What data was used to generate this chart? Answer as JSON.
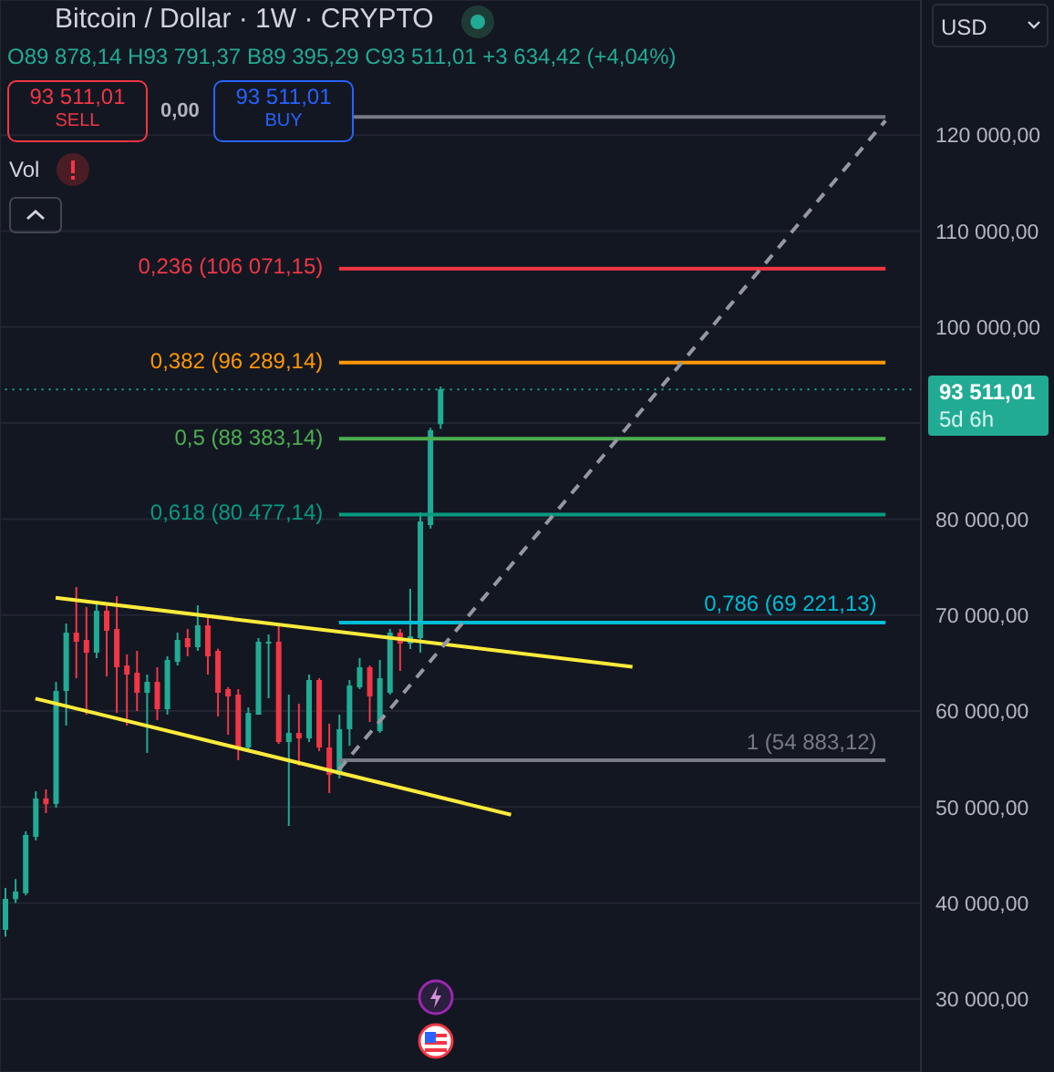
{
  "chart_data": {
    "type": "candlestick",
    "title": "Bitcoin / Dollar · 1W · CRYPTO",
    "subtitle": "O89 878,14 H93 791,37 B89 395,29 C93 511,01 +3 634,42 (+4,04%)",
    "annotations": [
      "93 511,01",
      "SELL",
      "93 511,01",
      "BUY",
      "Vol",
      "USD",
      "93 511,01",
      "5d 6h",
      "0,00"
    ],
    "categories": [
      null,
      null,
      null,
      null,
      null,
      null,
      null,
      null,
      null,
      null,
      null,
      null,
      null,
      null,
      null,
      null,
      null,
      null,
      null,
      null,
      null,
      null,
      null,
      null,
      null,
      null,
      null,
      null,
      null,
      null,
      null,
      null,
      null,
      null,
      null,
      null,
      null,
      null,
      null,
      null,
      null,
      null,
      null,
      null,
      null,
      null,
      null,
      null,
      null,
      null,
      null,
      null,
      null,
      null,
      null,
      null,
      null,
      null,
      null,
      null,
      null,
      null,
      null,
      null,
      null,
      null,
      null,
      null,
      null,
      null,
      null,
      null,
      null,
      null,
      null,
      null,
      null,
      null,
      null,
      null,
      null,
      null,
      null,
      null,
      null,
      null,
      null,
      null,
      null,
      null,
      null
    ],
    "ohlc": [
      [
        37216,
        41580,
        36500,
        40444
      ],
      [
        40400,
        42500,
        40000,
        41200
      ],
      [
        41014,
        47470,
        40800,
        47090
      ],
      [
        46900,
        51650,
        46520,
        50890
      ],
      [
        50900,
        51840,
        49370,
        50300
      ],
      [
        50320,
        63040,
        49940,
        62090
      ],
      [
        62090,
        69120,
        58490,
        68170
      ],
      [
        68170,
        72920,
        63420,
        67220
      ],
      [
        67410,
        70830,
        59620,
        66080
      ],
      [
        66080,
        71210,
        65510,
        70450
      ],
      [
        70450,
        71020,
        63610,
        68360
      ],
      [
        68550,
        71970,
        59810,
        64560
      ],
      [
        64750,
        65890,
        58490,
        63800
      ],
      [
        63990,
        66270,
        60000,
        61900
      ],
      [
        61900,
        63800,
        55640,
        63040
      ],
      [
        63040,
        64560,
        59050,
        60190
      ],
      [
        60190,
        65700,
        59620,
        65320
      ],
      [
        65130,
        68170,
        64750,
        67410
      ],
      [
        67600,
        68550,
        65700,
        66650
      ],
      [
        66650,
        71020,
        66270,
        68930
      ],
      [
        68930,
        69880,
        63800,
        65700
      ],
      [
        66270,
        66500,
        59430,
        61900
      ],
      [
        62280,
        62500,
        57530,
        61520
      ],
      [
        61710,
        62280,
        54880,
        56200
      ],
      [
        56200,
        60380,
        55830,
        59810
      ],
      [
        59620,
        67600,
        59620,
        67220
      ],
      [
        67030,
        67980,
        61330,
        67220
      ],
      [
        67220,
        69120,
        56580,
        56770
      ],
      [
        56770,
        61710,
        48040,
        57720
      ],
      [
        57720,
        60760,
        54310,
        57150
      ],
      [
        57150,
        63800,
        56770,
        63230
      ],
      [
        63230,
        63420,
        55830,
        56200
      ],
      [
        56200,
        58680,
        51460,
        53360
      ],
      [
        53360,
        59620,
        52980,
        58110
      ],
      [
        58110,
        63230,
        56390,
        62660
      ],
      [
        62470,
        65510,
        62280,
        64560
      ],
      [
        64560,
        64750,
        58870,
        61520
      ],
      [
        57910,
        65320,
        57720,
        63420
      ],
      [
        61900,
        68550,
        61710,
        68170
      ],
      [
        68170,
        68550,
        64180,
        67030
      ],
      [
        67030,
        72730,
        66460,
        67790
      ],
      [
        67600,
        80700,
        66080,
        79750
      ],
      [
        79370,
        89500,
        79000,
        89250
      ],
      [
        89878.14,
        93791.37,
        89395.29,
        93511.01
      ],
      null,
      null,
      null,
      null,
      null,
      null,
      null,
      null,
      null,
      null,
      null,
      null,
      null,
      null,
      null,
      null,
      null,
      null,
      null,
      null,
      null,
      null,
      null,
      null,
      null,
      null,
      null,
      null,
      null,
      null,
      null,
      null,
      null,
      null,
      null,
      null,
      null,
      null,
      null,
      null,
      null,
      null,
      null,
      null,
      null,
      null,
      null
    ],
    "colors": [
      "#22ab94",
      "#22ab94",
      "#22ab94",
      "#22ab94",
      "#f23645",
      "#22ab94",
      "#22ab94",
      "#f23645",
      "#f23645",
      "#22ab94",
      "#f23645",
      "#f23645",
      "#f23645",
      "#f23645",
      "#22ab94",
      "#f23645",
      "#22ab94",
      "#22ab94",
      "#f23645",
      "#22ab94",
      "#f23645",
      "#f23645",
      "#f23645",
      "#f23645",
      "#22ab94",
      "#22ab94",
      "#22ab94",
      "#f23645",
      "#22ab94",
      "#f23645",
      "#22ab94",
      "#f23645",
      "#f23645",
      "#22ab94",
      "#22ab94",
      "#22ab94",
      "#f23645",
      "#22ab94",
      "#22ab94",
      "#f23645",
      "#22ab94",
      "#22ab94",
      "#22ab94",
      "#22ab94",
      null,
      null,
      null,
      null,
      null,
      null,
      null,
      null,
      null,
      null,
      null,
      null,
      null,
      null,
      null,
      null,
      null,
      null,
      null,
      null,
      null,
      null,
      null,
      null,
      null,
      null,
      null,
      null,
      null,
      null,
      null,
      null,
      null,
      null,
      null,
      null,
      null,
      null,
      null,
      null,
      null,
      null,
      null,
      null,
      null,
      null,
      null
    ],
    "series": [
      {
        "type": "line",
        "color": "#ffeb3b",
        "line_style": "solid",
        "values": [
          null,
          null,
          null,
          null,
          null,
          71800,
          null,
          null,
          null,
          null,
          null,
          null,
          null,
          null,
          null,
          null,
          null,
          null,
          null,
          null,
          null,
          null,
          null,
          null,
          null,
          null,
          null,
          null,
          null,
          null,
          null,
          null,
          null,
          null,
          null,
          null,
          null,
          null,
          null,
          null,
          null,
          null,
          null,
          null,
          null,
          null,
          null,
          null,
          null,
          null,
          null,
          null,
          null,
          null,
          null,
          null,
          null,
          null,
          null,
          null,
          null,
          null,
          64600,
          null,
          null,
          null,
          null,
          null,
          null,
          null,
          null,
          null,
          null,
          null,
          null,
          null,
          null,
          null,
          null,
          null,
          null,
          null,
          null,
          null,
          null,
          null,
          null,
          null,
          null,
          null,
          null
        ]
      },
      {
        "type": "line",
        "color": "#ffeb3b",
        "line_style": "solid",
        "values": [
          null,
          null,
          null,
          61300,
          null,
          null,
          null,
          null,
          null,
          null,
          null,
          null,
          null,
          null,
          null,
          null,
          null,
          null,
          null,
          null,
          null,
          null,
          null,
          null,
          null,
          null,
          null,
          null,
          null,
          null,
          null,
          null,
          null,
          null,
          null,
          null,
          null,
          null,
          null,
          null,
          null,
          null,
          null,
          null,
          null,
          null,
          null,
          null,
          null,
          null,
          49200,
          null,
          null,
          null,
          null,
          null,
          null,
          null,
          null,
          null,
          null,
          null,
          null,
          null,
          null,
          null,
          null,
          null,
          null,
          null,
          null,
          null,
          null,
          null,
          null,
          null,
          null,
          null,
          null,
          null,
          null,
          null,
          null,
          null,
          null,
          null,
          null,
          null,
          null,
          null,
          null
        ]
      },
      {
        "type": "line",
        "color": "#9598a1",
        "line_style": "dashed",
        "values": [
          null,
          null,
          null,
          null,
          null,
          null,
          null,
          null,
          null,
          null,
          null,
          null,
          null,
          null,
          null,
          null,
          null,
          null,
          null,
          null,
          null,
          null,
          null,
          null,
          null,
          null,
          null,
          null,
          null,
          null,
          null,
          null,
          null,
          53900,
          null,
          null,
          null,
          null,
          null,
          null,
          null,
          null,
          null,
          null,
          null,
          null,
          null,
          null,
          null,
          null,
          null,
          null,
          null,
          null,
          null,
          null,
          null,
          null,
          null,
          null,
          null,
          null,
          null,
          null,
          null,
          null,
          null,
          null,
          null,
          null,
          null,
          null,
          null,
          null,
          null,
          null,
          null,
          null,
          null,
          null,
          null,
          null,
          null,
          null,
          null,
          null,
          null,
          121500,
          null,
          null,
          null
        ]
      }
    ],
    "ref_lines": [
      {
        "axis": "y",
        "value": 121883.12,
        "color": "#787b86"
      },
      {
        "axis": "y",
        "value": 106071.15,
        "label": "0,236 (106 071,15)",
        "color": "#f23645"
      },
      {
        "axis": "y",
        "value": 96289.14,
        "label": "0,382 (96 289,14)",
        "color": "#ff9800"
      },
      {
        "axis": "y",
        "value": 93511.01,
        "color": "#22ab94",
        "line_style": "dotted"
      },
      {
        "axis": "y",
        "value": 88383.14,
        "label": "0,5 (88 383,14)",
        "color": "#4caf50"
      },
      {
        "axis": "y",
        "value": 80477.14,
        "label": "0,618 (80 477,14)",
        "color": "#089981"
      },
      {
        "axis": "y",
        "value": 69221.13,
        "label": "0,786 (69 221,13)",
        "color": "#00bcd4"
      },
      {
        "axis": "y",
        "value": 54883.12,
        "label": "1 (54 883,12)",
        "color": "#787b86"
      }
    ],
    "ylim": [
      22400,
      134070
    ],
    "yticks": [
      {
        "value": 30000,
        "label": "30 000,00"
      },
      {
        "value": 40000,
        "label": "40 000,00"
      },
      {
        "value": 50000,
        "label": "50 000,00"
      },
      {
        "value": 60000,
        "label": "60 000,00"
      },
      {
        "value": 70000,
        "label": "70 000,00"
      },
      {
        "value": 80000,
        "label": "80 000,00"
      },
      {
        "value": 90000,
        "label": null
      },
      {
        "value": 100000,
        "label": "100 000,00"
      },
      {
        "value": 110000,
        "label": "110 000,00"
      },
      {
        "value": 120000,
        "label": "120 000,00"
      }
    ],
    "grid": true,
    "tick_labels": "y"
  }
}
